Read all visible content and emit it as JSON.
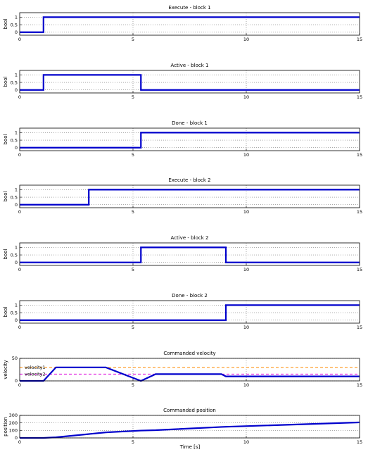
{
  "colors": {
    "signal": "#0000cc",
    "velocity1": "#ff8c00",
    "velocity2": "#dd00dd",
    "grid": "#555555"
  },
  "xlabel": "Time [s]",
  "chart_data": [
    {
      "type": "line",
      "title": "Execute - block 1",
      "ylabel": "bool",
      "xlim": [
        0,
        15
      ],
      "ylim": [
        -0.2,
        1.3
      ],
      "xticks": [
        0,
        5,
        10,
        15
      ],
      "yticks": [
        0,
        0.5,
        1
      ],
      "series": [
        {
          "x": [
            0,
            1.05,
            1.05,
            15
          ],
          "y": [
            0,
            0,
            1,
            1
          ]
        }
      ]
    },
    {
      "type": "line",
      "title": "Active - block 1",
      "ylabel": "bool",
      "xlim": [
        0,
        15
      ],
      "ylim": [
        -0.2,
        1.3
      ],
      "xticks": [
        0,
        5,
        10,
        15
      ],
      "yticks": [
        0,
        0.5,
        1
      ],
      "series": [
        {
          "x": [
            0,
            1.05,
            1.05,
            5.35,
            5.35,
            15
          ],
          "y": [
            0,
            0,
            1,
            1,
            0,
            0
          ]
        }
      ]
    },
    {
      "type": "line",
      "title": "Done - block 1",
      "ylabel": "bool",
      "xlim": [
        0,
        15
      ],
      "ylim": [
        -0.2,
        1.3
      ],
      "xticks": [
        0,
        5,
        10,
        15
      ],
      "yticks": [
        0,
        0.5,
        1
      ],
      "series": [
        {
          "x": [
            0,
            5.35,
            5.35,
            15
          ],
          "y": [
            0,
            0,
            1,
            1
          ]
        }
      ]
    },
    {
      "type": "line",
      "title": "Execute - block 2",
      "ylabel": "bool",
      "xlim": [
        0,
        15
      ],
      "ylim": [
        -0.2,
        1.3
      ],
      "xticks": [
        0,
        5,
        10,
        15
      ],
      "yticks": [
        0,
        0.5,
        1
      ],
      "series": [
        {
          "x": [
            0,
            3.05,
            3.05,
            15
          ],
          "y": [
            0,
            0,
            1,
            1
          ]
        }
      ]
    },
    {
      "type": "line",
      "title": "Active - block 2",
      "ylabel": "bool",
      "xlim": [
        0,
        15
      ],
      "ylim": [
        -0.2,
        1.3
      ],
      "xticks": [
        0,
        5,
        10,
        15
      ],
      "yticks": [
        0,
        0.5,
        1
      ],
      "series": [
        {
          "x": [
            0,
            5.35,
            5.35,
            9.1,
            9.1,
            15
          ],
          "y": [
            0,
            0,
            1,
            1,
            0,
            0
          ]
        }
      ]
    },
    {
      "type": "line",
      "title": "Done - block 2",
      "ylabel": "bool",
      "xlim": [
        0,
        15
      ],
      "ylim": [
        -0.2,
        1.3
      ],
      "xticks": [
        0,
        5,
        10,
        15
      ],
      "yticks": [
        0,
        0.5,
        1
      ],
      "series": [
        {
          "x": [
            0,
            9.1,
            9.1,
            15
          ],
          "y": [
            0,
            0,
            1,
            1
          ]
        }
      ]
    },
    {
      "type": "line",
      "title": "Commanded velocity",
      "ylabel": "velocity",
      "xlim": [
        0,
        15
      ],
      "ylim": [
        0,
        50
      ],
      "xticks": [
        0,
        5,
        10,
        15
      ],
      "yticks": [
        0,
        50
      ],
      "series": [
        {
          "x": [
            0,
            1.05,
            1.6,
            3.8,
            5.35,
            6.0,
            8.9,
            9.1,
            15
          ],
          "y": [
            0,
            0,
            30,
            30,
            0,
            15,
            15,
            10,
            10
          ]
        }
      ],
      "reference_lines": [
        {
          "label": "velocity1",
          "y": 30,
          "color": "velocity1"
        },
        {
          "label": "velocity2",
          "y": 15,
          "color": "velocity2"
        }
      ]
    },
    {
      "type": "line",
      "title": "Commanded position",
      "ylabel": "position",
      "xlim": [
        0,
        15
      ],
      "ylim": [
        0,
        300
      ],
      "xticks": [
        0,
        5,
        10,
        15
      ],
      "yticks": [
        0,
        100,
        200,
        300
      ],
      "series": [
        {
          "x": [
            0,
            1.05,
            1.6,
            3.8,
            5.35,
            6.0,
            8.9,
            9.1,
            15
          ],
          "y": [
            0,
            0,
            8,
            74,
            98,
            103,
            146,
            148,
            207
          ]
        }
      ]
    }
  ]
}
